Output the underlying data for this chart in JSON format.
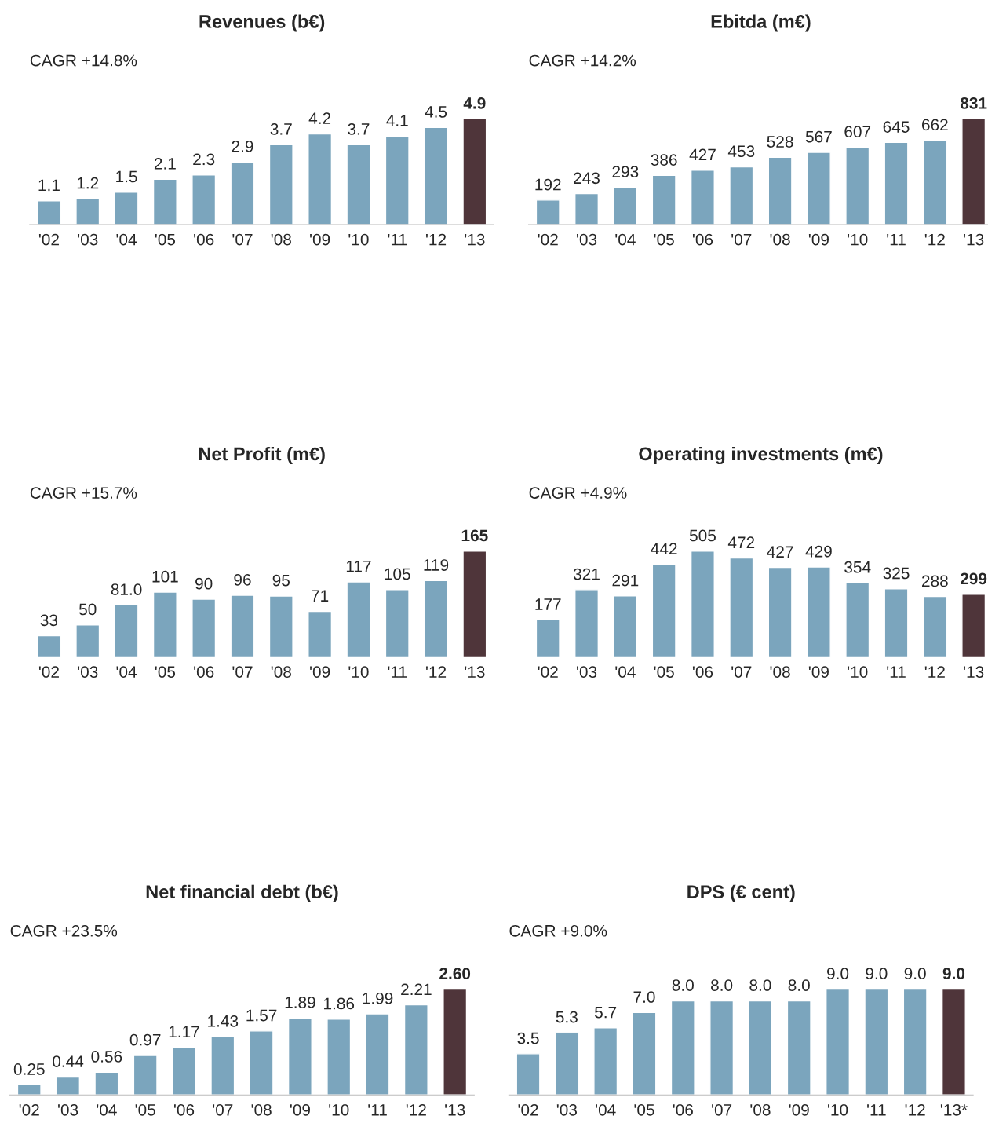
{
  "chart_data": [
    {
      "type": "bar",
      "title": "Revenues (b€)",
      "annotations": [
        "CAGR +14.8%"
      ],
      "categories": [
        "'02",
        "'03",
        "'04",
        "'05",
        "'06",
        "'07",
        "'08",
        "'09",
        "'10",
        "'11",
        "'12",
        "'13"
      ],
      "values": [
        1.1,
        1.2,
        1.5,
        2.1,
        2.3,
        2.9,
        3.7,
        4.2,
        3.7,
        4.1,
        4.5,
        4.9
      ],
      "value_labels": [
        "1.1",
        "1.2",
        "1.5",
        "2.1",
        "2.3",
        "2.9",
        "3.7",
        "4.2",
        "3.7",
        "4.1",
        "4.5",
        "4.9"
      ],
      "colors": [
        "#7ba5bd",
        "#7ba5bd",
        "#7ba5bd",
        "#7ba5bd",
        "#7ba5bd",
        "#7ba5bd",
        "#7ba5bd",
        "#7ba5bd",
        "#7ba5bd",
        "#7ba5bd",
        "#7ba5bd",
        "#4f353a"
      ],
      "grid": false,
      "legend": false
    },
    {
      "type": "bar",
      "title": "Ebitda (m€)",
      "annotations": [
        "CAGR +14.2%"
      ],
      "categories": [
        "'02",
        "'03",
        "'04",
        "'05",
        "'06",
        "'07",
        "'08",
        "'09",
        "'10",
        "'11",
        "'12",
        "'13"
      ],
      "values": [
        192,
        243,
        293,
        386,
        427,
        453,
        528,
        567,
        607,
        645,
        662,
        831
      ],
      "value_labels": [
        "192",
        "243",
        "293",
        "386",
        "427",
        "453",
        "528",
        "567",
        "607",
        "645",
        "662",
        "831"
      ],
      "colors": [
        "#7ba5bd",
        "#7ba5bd",
        "#7ba5bd",
        "#7ba5bd",
        "#7ba5bd",
        "#7ba5bd",
        "#7ba5bd",
        "#7ba5bd",
        "#7ba5bd",
        "#7ba5bd",
        "#7ba5bd",
        "#4f353a"
      ],
      "grid": false,
      "legend": false
    },
    {
      "type": "bar",
      "title": "Net Profit (m€)",
      "annotations": [
        "CAGR +15.7%"
      ],
      "categories": [
        "'02",
        "'03",
        "'04",
        "'05",
        "'06",
        "'07",
        "'08",
        "'09",
        "'10",
        "'11",
        "'12",
        "'13"
      ],
      "values": [
        33,
        50,
        81.0,
        101,
        90,
        96,
        95,
        71,
        117,
        105,
        119,
        165
      ],
      "value_labels": [
        "33",
        "50",
        "81.0",
        "101",
        "90",
        "96",
        "95",
        "71",
        "117",
        "105",
        "119",
        "165"
      ],
      "colors": [
        "#7ba5bd",
        "#7ba5bd",
        "#7ba5bd",
        "#7ba5bd",
        "#7ba5bd",
        "#7ba5bd",
        "#7ba5bd",
        "#7ba5bd",
        "#7ba5bd",
        "#7ba5bd",
        "#7ba5bd",
        "#4f353a"
      ],
      "grid": false,
      "legend": false
    },
    {
      "type": "bar",
      "title": "Operating investments (m€)",
      "annotations": [
        "CAGR +4.9%"
      ],
      "categories": [
        "'02",
        "'03",
        "'04",
        "'05",
        "'06",
        "'07",
        "'08",
        "'09",
        "'10",
        "'11",
        "'12",
        "'13"
      ],
      "values": [
        177,
        321,
        291,
        442,
        505,
        472,
        427,
        429,
        354,
        325,
        288,
        299
      ],
      "value_labels": [
        "177",
        "321",
        "291",
        "442",
        "505",
        "472",
        "427",
        "429",
        "354",
        "325",
        "288",
        "299"
      ],
      "colors": [
        "#7ba5bd",
        "#7ba5bd",
        "#7ba5bd",
        "#7ba5bd",
        "#7ba5bd",
        "#7ba5bd",
        "#7ba5bd",
        "#7ba5bd",
        "#7ba5bd",
        "#7ba5bd",
        "#7ba5bd",
        "#4f353a"
      ],
      "grid": false,
      "legend": false
    },
    {
      "type": "bar",
      "title": "Net financial debt (b€)",
      "annotations": [
        "CAGR +23.5%"
      ],
      "categories": [
        "'02",
        "'03",
        "'04",
        "'05",
        "'06",
        "'07",
        "'08",
        "'09",
        "'10",
        "'11",
        "'12",
        "'13"
      ],
      "values": [
        0.25,
        0.44,
        0.56,
        0.97,
        1.17,
        1.43,
        1.57,
        1.89,
        1.86,
        1.99,
        2.21,
        2.6
      ],
      "value_labels": [
        "0.25",
        "0.44",
        "0.56",
        "0.97",
        "1.17",
        "1.43",
        "1.57",
        "1.89",
        "1.86",
        "1.99",
        "2.21",
        "2.60"
      ],
      "colors": [
        "#7ba5bd",
        "#7ba5bd",
        "#7ba5bd",
        "#7ba5bd",
        "#7ba5bd",
        "#7ba5bd",
        "#7ba5bd",
        "#7ba5bd",
        "#7ba5bd",
        "#7ba5bd",
        "#7ba5bd",
        "#4f353a"
      ],
      "grid": false,
      "legend": false
    },
    {
      "type": "bar",
      "title": "DPS (€ cent)",
      "annotations": [
        "CAGR +9.0%"
      ],
      "categories": [
        "'02",
        "'03",
        "'04",
        "'05",
        "'06",
        "'07",
        "'08",
        "'09",
        "'10",
        "'11",
        "'12",
        "'13*"
      ],
      "values": [
        3.5,
        5.3,
        5.7,
        7.0,
        8.0,
        8.0,
        8.0,
        8.0,
        9.0,
        9.0,
        9.0,
        9.0
      ],
      "value_labels": [
        "3.5",
        "5.3",
        "5.7",
        "7.0",
        "8.0",
        "8.0",
        "8.0",
        "8.0",
        "9.0",
        "9.0",
        "9.0",
        "9.0"
      ],
      "colors": [
        "#7ba5bd",
        "#7ba5bd",
        "#7ba5bd",
        "#7ba5bd",
        "#7ba5bd",
        "#7ba5bd",
        "#7ba5bd",
        "#7ba5bd",
        "#7ba5bd",
        "#7ba5bd",
        "#7ba5bd",
        "#4f353a"
      ],
      "grid": false,
      "legend": false
    }
  ]
}
